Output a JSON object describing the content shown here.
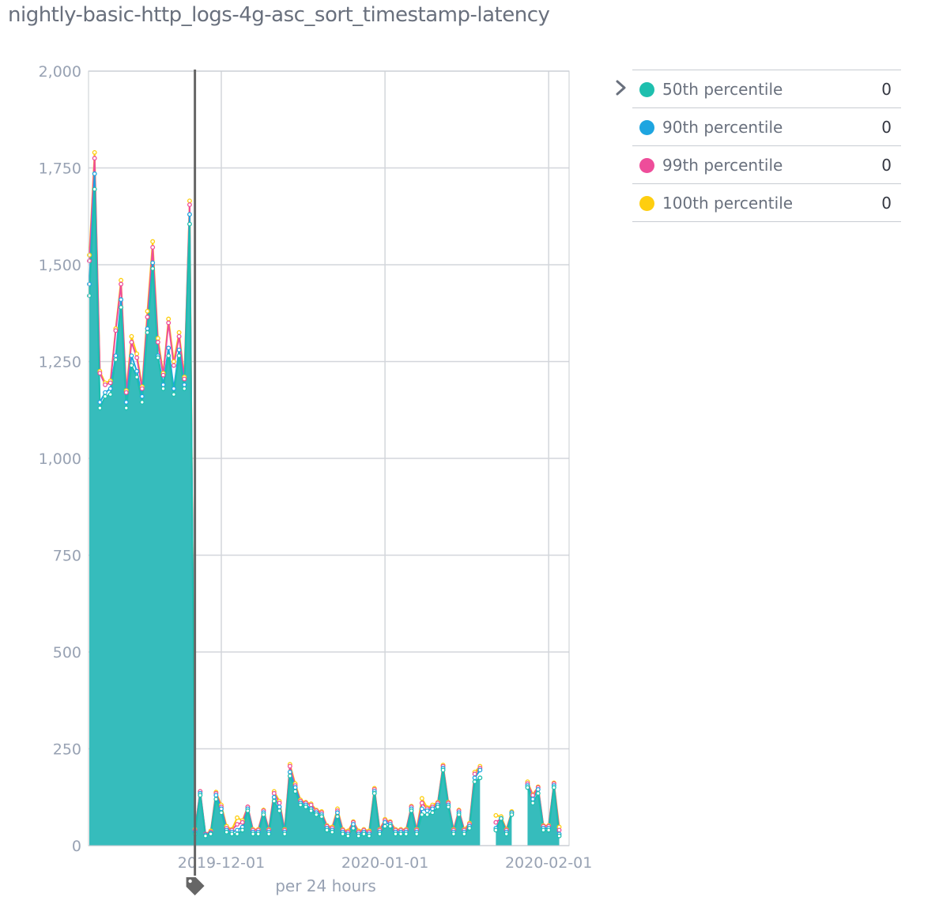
{
  "title": "nightly-basic-http_logs-4g-asc_sort_timestamp-latency",
  "legend": [
    {
      "label": "50th percentile",
      "value": "0",
      "color": "#1ebfae"
    },
    {
      "label": "90th percentile",
      "value": "0",
      "color": "#1ea5e0"
    },
    {
      "label": "99th percentile",
      "value": "0",
      "color": "#ee4d9a"
    },
    {
      "label": "100th percentile",
      "value": "0",
      "color": "#fece0f"
    }
  ],
  "colors": {
    "area": "#36bcbc",
    "marker": "#666666",
    "grid": "#d3d6db"
  },
  "icons": {
    "chevron": "chevron-right-icon",
    "tag": "tag-icon"
  },
  "chart_data": {
    "type": "area",
    "interval_label": "per 24 hours",
    "xlabel": "",
    "ylabel": "",
    "x_start": "2019-11-06",
    "ylim": [
      0,
      2000
    ],
    "y_ticks": [
      0,
      250,
      500,
      750,
      1000,
      1250,
      1500,
      1750,
      2000
    ],
    "y_tick_labels": [
      "0",
      "250",
      "500",
      "750",
      "1,000",
      "1,250",
      "1,500",
      "1,750",
      "2,000"
    ],
    "x_ticks": [
      {
        "date": "2019-12-01",
        "label": "2019-12-01"
      },
      {
        "date": "2020-01-01",
        "label": "2020-01-01"
      },
      {
        "date": "2020-02-01",
        "label": "2020-02-01"
      }
    ],
    "marker_date": "2019-11-26",
    "series": [
      {
        "name": "50th percentile",
        "color": "#1ebfae",
        "values": [
          1420,
          1695,
          1130,
          1160,
          1165,
          1255,
          1390,
          1130,
          1240,
          1210,
          1145,
          1325,
          1490,
          1260,
          1180,
          1265,
          1165,
          1265,
          1180,
          1605,
          30,
          130,
          25,
          30,
          120,
          85,
          35,
          30,
          30,
          40,
          90,
          30,
          30,
          80,
          30,
          115,
          90,
          30,
          180,
          140,
          105,
          100,
          90,
          80,
          75,
          40,
          35,
          75,
          30,
          25,
          45,
          25,
          30,
          25,
          135,
          30,
          50,
          50,
          30,
          30,
          30,
          90,
          30,
          80,
          80,
          85,
          100,
          195,
          100,
          30,
          80,
          30,
          45,
          165,
          175,
          null,
          null,
          40,
          70,
          30,
          80,
          null,
          null,
          150,
          110,
          135,
          40,
          40,
          150,
          25
        ]
      },
      {
        "name": "90th percentile",
        "color": "#1ea5e0",
        "values": [
          1450,
          1735,
          1145,
          1170,
          1180,
          1265,
          1410,
          1145,
          1265,
          1225,
          1160,
          1335,
          1505,
          1265,
          1190,
          1285,
          1180,
          1280,
          1190,
          1630,
          35,
          135,
          28,
          32,
          130,
          95,
          40,
          35,
          40,
          48,
          95,
          35,
          35,
          85,
          35,
          125,
          100,
          35,
          190,
          150,
          110,
          105,
          95,
          85,
          80,
          45,
          40,
          85,
          35,
          30,
          55,
          30,
          35,
          30,
          140,
          35,
          60,
          55,
          35,
          35,
          35,
          95,
          35,
          95,
          90,
          95,
          105,
          200,
          105,
          35,
          85,
          35,
          50,
          175,
          195,
          null,
          null,
          45,
          70,
          35,
          85,
          null,
          null,
          155,
          120,
          145,
          45,
          45,
          155,
          30
        ]
      },
      {
        "name": "99th percentile",
        "color": "#ee4d9a",
        "values": [
          1510,
          1775,
          1220,
          1190,
          1195,
          1330,
          1450,
          1170,
          1300,
          1260,
          1180,
          1365,
          1545,
          1300,
          1215,
          1350,
          1240,
          1315,
          1205,
          1655,
          40,
          140,
          30,
          35,
          135,
          100,
          45,
          40,
          55,
          60,
          100,
          40,
          40,
          90,
          40,
          135,
          110,
          40,
          205,
          155,
          115,
          110,
          105,
          90,
          85,
          50,
          45,
          90,
          40,
          35,
          60,
          35,
          40,
          35,
          145,
          40,
          65,
          60,
          40,
          40,
          40,
          100,
          40,
          110,
          95,
          100,
          110,
          205,
          110,
          40,
          90,
          40,
          55,
          185,
          200,
          null,
          null,
          60,
          70,
          40,
          85,
          null,
          null,
          160,
          130,
          150,
          50,
          50,
          160,
          40
        ]
      },
      {
        "name": "100th percentile",
        "color": "#fece0f",
        "values": [
          1525,
          1790,
          1225,
          1195,
          1200,
          1335,
          1460,
          1175,
          1315,
          1270,
          1185,
          1380,
          1560,
          1310,
          1220,
          1360,
          1250,
          1325,
          1210,
          1665,
          42,
          140,
          30,
          38,
          138,
          105,
          50,
          42,
          72,
          65,
          100,
          42,
          42,
          92,
          42,
          140,
          115,
          42,
          210,
          160,
          118,
          112,
          108,
          92,
          88,
          52,
          48,
          95,
          42,
          38,
          62,
          38,
          42,
          38,
          148,
          42,
          68,
          62,
          42,
          42,
          42,
          102,
          42,
          122,
          98,
          105,
          112,
          208,
          112,
          42,
          92,
          42,
          58,
          190,
          205,
          null,
          null,
          78,
          75,
          42,
          88,
          null,
          null,
          165,
          132,
          152,
          52,
          52,
          162,
          48
        ]
      }
    ]
  }
}
